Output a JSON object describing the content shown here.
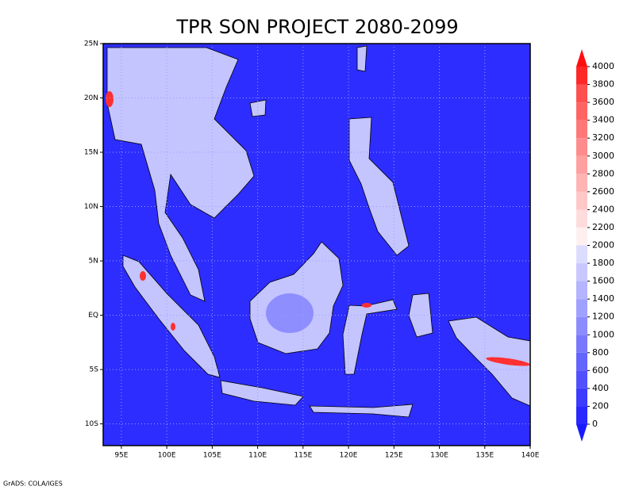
{
  "map": {
    "title": "TPR SON PROJECT 2080-2099",
    "xlim": [
      93,
      140
    ],
    "ylim": [
      -12,
      25
    ],
    "xticks": [
      {
        "value": 95,
        "label": "95E"
      },
      {
        "value": 100,
        "label": "100E"
      },
      {
        "value": 105,
        "label": "105E"
      },
      {
        "value": 110,
        "label": "110E"
      },
      {
        "value": 115,
        "label": "115E"
      },
      {
        "value": 120,
        "label": "120E"
      },
      {
        "value": 125,
        "label": "125E"
      },
      {
        "value": 130,
        "label": "130E"
      },
      {
        "value": 135,
        "label": "135E"
      },
      {
        "value": 140,
        "label": "140E"
      }
    ],
    "yticks": [
      {
        "value": 25,
        "label": "25N"
      },
      {
        "value": 20,
        "label": "20N"
      },
      {
        "value": 15,
        "label": "15N"
      },
      {
        "value": 10,
        "label": "10N"
      },
      {
        "value": 5,
        "label": "5N"
      },
      {
        "value": 0,
        "label": "EQ"
      },
      {
        "value": -5,
        "label": "5S"
      },
      {
        "value": -10,
        "label": "10S"
      }
    ],
    "background_color": "#2d2dff"
  },
  "colorbar": {
    "levels": [
      0,
      200,
      400,
      600,
      800,
      1000,
      1200,
      1400,
      1600,
      1800,
      2000,
      2200,
      2400,
      2600,
      2800,
      3000,
      3200,
      3400,
      3600,
      3800,
      4000
    ],
    "colors": [
      "#1a1aff",
      "#2828ff",
      "#3c3cff",
      "#5050ff",
      "#6464ff",
      "#7878ff",
      "#8c8cff",
      "#a0a0ff",
      "#b4b4ff",
      "#c8c8ff",
      "#dcdcff",
      "#fff0f0",
      "#ffdcdc",
      "#ffc8c8",
      "#ffb4b4",
      "#ffa0a0",
      "#ff8c8c",
      "#ff7878",
      "#ff6464",
      "#ff5050",
      "#ff2828",
      "#ff1010"
    ]
  },
  "footer": "GrADS: COLA/IGES"
}
